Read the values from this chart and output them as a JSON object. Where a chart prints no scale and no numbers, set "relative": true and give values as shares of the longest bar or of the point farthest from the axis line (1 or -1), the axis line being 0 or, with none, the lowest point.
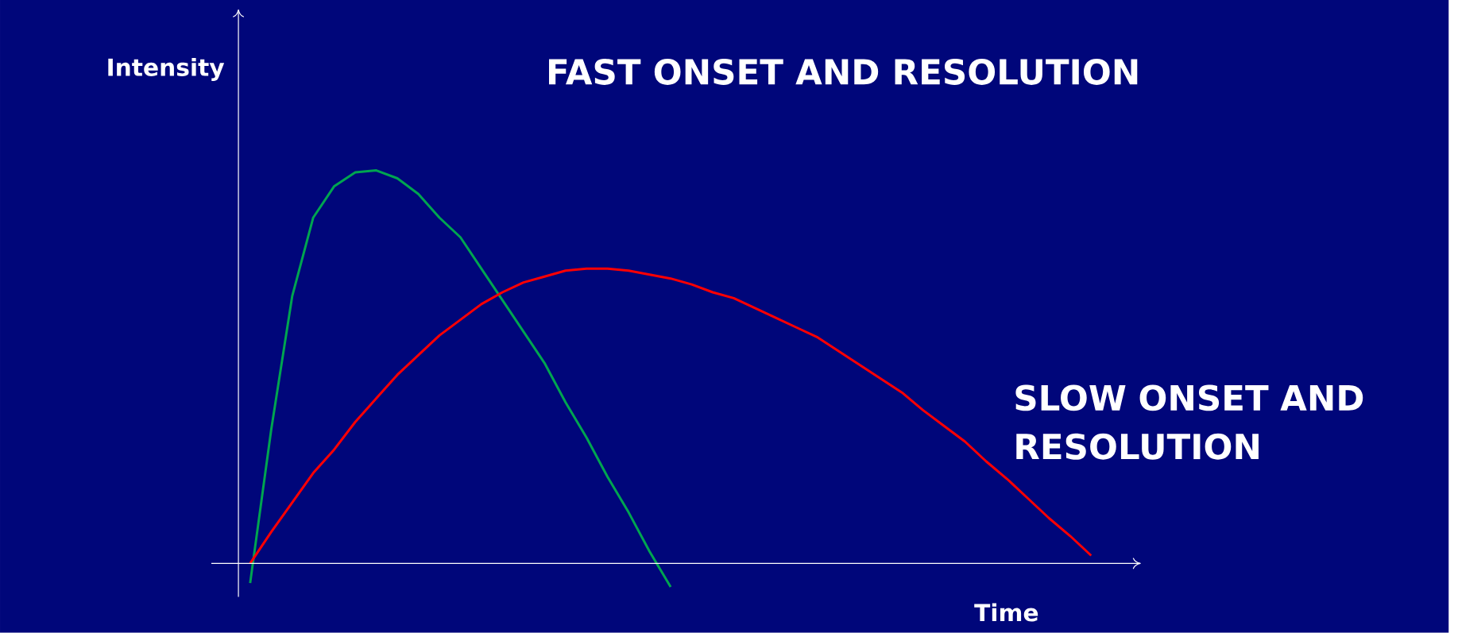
{
  "chart_data": {
    "type": "line",
    "relative": true,
    "xlabel": "Time",
    "ylabel": "Intensity",
    "annotations": [
      "FAST ONSET AND RESOLUTION",
      "SLOW ONSET AND RESOLUTION"
    ],
    "categories": [
      null,
      null,
      null,
      null,
      null,
      null,
      null,
      null,
      null,
      null,
      null,
      null,
      null,
      null,
      null,
      null,
      null,
      null,
      null,
      null,
      null,
      null,
      null,
      null,
      null,
      null,
      null,
      null,
      null,
      null,
      null,
      null,
      null,
      null,
      null,
      null,
      null,
      null,
      null,
      null,
      null
    ],
    "series": [
      {
        "color": "#00a550",
        "values": [
          -0.05,
          0.34,
          0.68,
          0.88,
          0.96,
          0.995,
          1,
          0.98,
          0.94,
          0.88,
          0.83,
          0.75,
          0.67,
          0.59,
          0.51,
          0.41,
          0.32,
          0.22,
          0.13,
          0.03,
          -0.06,
          null,
          null,
          null,
          null,
          null,
          null,
          null,
          null,
          null,
          null,
          null,
          null,
          null,
          null,
          null,
          null,
          null,
          null,
          null,
          null
        ]
      },
      {
        "color": "#ff0000",
        "values": [
          0,
          0.08,
          0.155,
          0.23,
          0.29,
          0.36,
          0.42,
          0.48,
          0.53,
          0.58,
          0.62,
          0.66,
          0.69,
          0.715,
          0.73,
          0.745,
          0.75,
          0.75,
          0.745,
          0.735,
          0.725,
          0.71,
          0.69,
          0.675,
          0.65,
          0.625,
          0.6,
          0.575,
          0.54,
          0.505,
          0.47,
          0.435,
          0.39,
          0.35,
          0.31,
          0.26,
          0.215,
          0.165,
          0.115,
          0.07,
          0.02
        ]
      }
    ]
  }
}
